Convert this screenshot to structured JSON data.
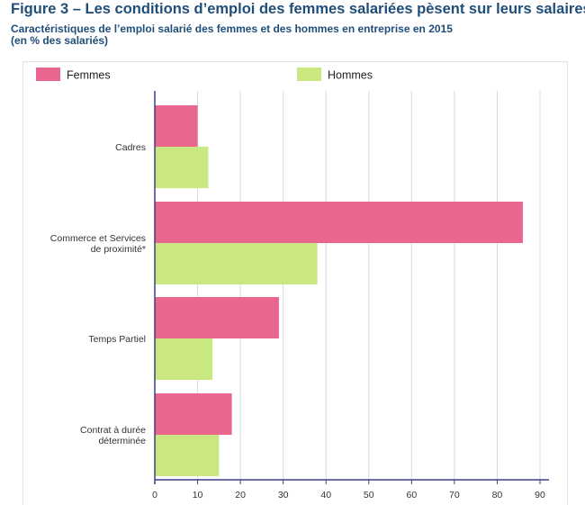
{
  "header": {
    "title": "Figure 3 – Les conditions d’emploi des femmes salariées pèsent sur leurs salaires",
    "subtitle_line1": "Caractéristiques de l’emploi salarié des femmes et des hommes en entreprise en 2015",
    "subtitle_line2": "(en % des salariés)"
  },
  "chart_data": {
    "type": "bar",
    "orientation": "horizontal",
    "categories": [
      [
        "Cadres"
      ],
      [
        "Commerce et Services",
        "de proximité*"
      ],
      [
        "Temps Partiel"
      ],
      [
        "Contrat à durée",
        "déterminée"
      ]
    ],
    "series": [
      {
        "name": "Femmes",
        "color": "#e9668f",
        "values": [
          10,
          86,
          29,
          18
        ]
      },
      {
        "name": "Hommes",
        "color": "#c9e882",
        "values": [
          12.5,
          38,
          13.5,
          15
        ]
      }
    ],
    "xlim": [
      0,
      90
    ],
    "xticks": [
      0,
      10,
      20,
      30,
      40,
      50,
      60,
      70,
      80,
      90
    ],
    "grid": true,
    "legend_position": "top",
    "axis_color": "#3d3f87",
    "grid_color": "#d9d9d9"
  }
}
